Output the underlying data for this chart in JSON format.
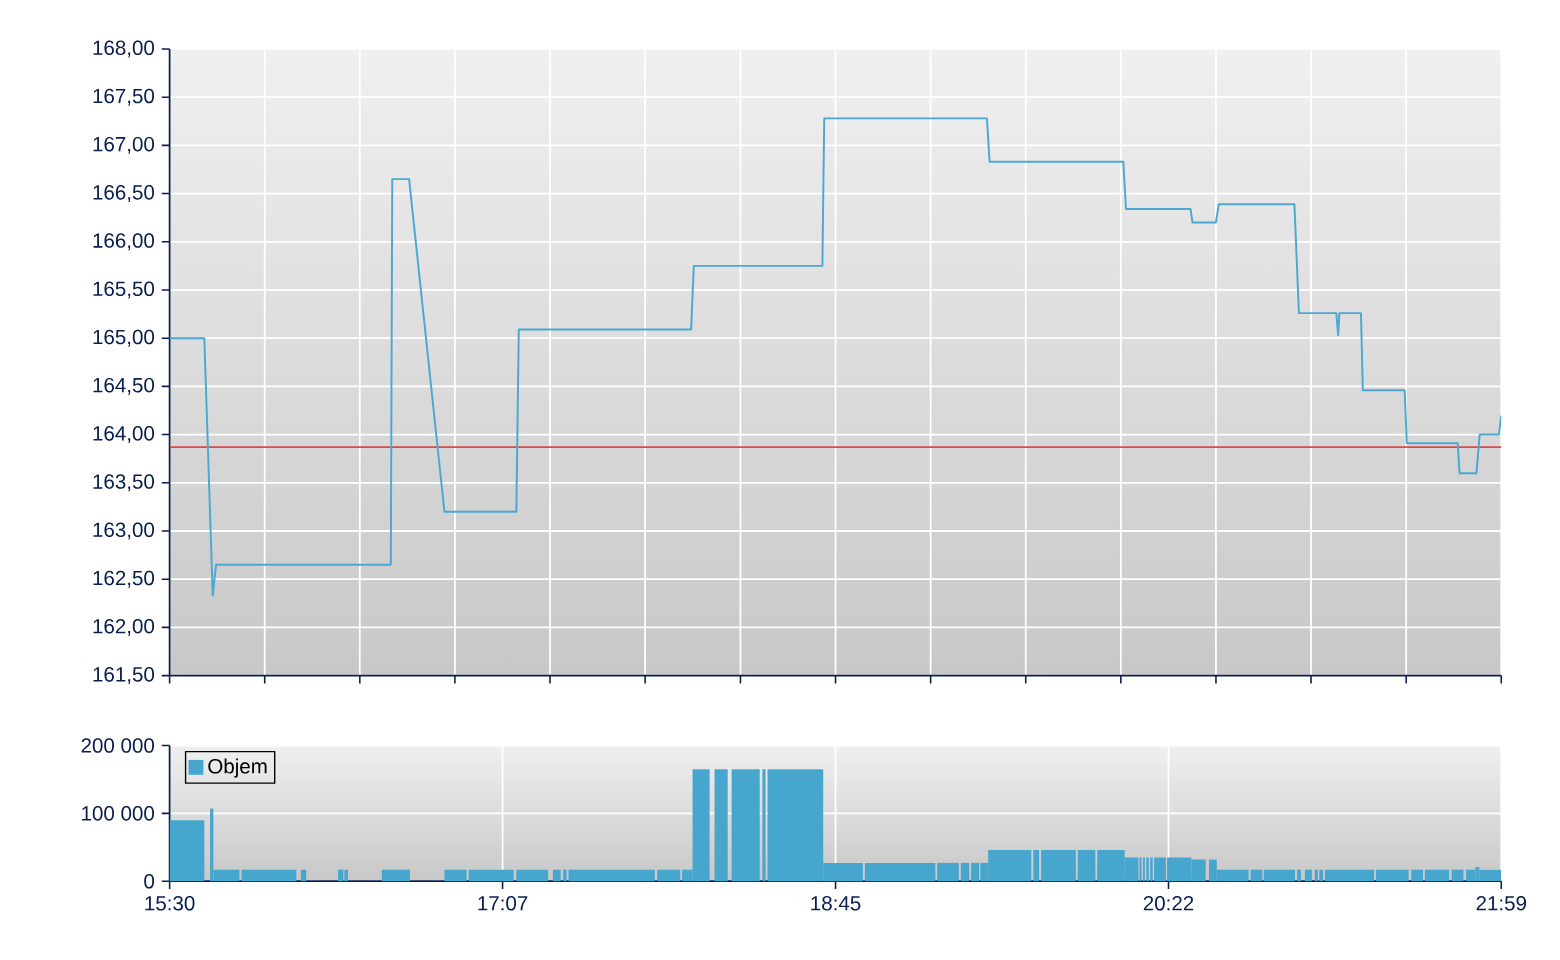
{
  "chart_data": [
    {
      "type": "line",
      "x": [
        15.5,
        15.669,
        15.71,
        15.726,
        16.577,
        16.584,
        16.666,
        16.838,
        17.188,
        17.2,
        18.039,
        18.052,
        18.678,
        18.687,
        19.479,
        19.492,
        20.143,
        20.156,
        20.47,
        20.48,
        20.594,
        20.608,
        20.976,
        20.998,
        21.18,
        21.189,
        21.195,
        21.3,
        21.309,
        21.513,
        21.523,
        21.771,
        21.78,
        21.862,
        21.878,
        21.971,
        21.983
      ],
      "values": [
        165.0,
        165.0,
        162.33,
        162.65,
        162.65,
        166.65,
        166.65,
        163.2,
        163.2,
        165.09,
        165.09,
        165.75,
        165.75,
        167.28,
        167.28,
        166.83,
        166.83,
        166.34,
        166.34,
        166.2,
        166.2,
        166.39,
        166.39,
        165.26,
        165.26,
        165.03,
        165.26,
        165.26,
        164.46,
        164.46,
        163.91,
        163.91,
        163.6,
        163.6,
        164.0,
        164.0,
        164.19
      ],
      "color": "#4ba8d3",
      "xlim": [
        15.5,
        21.983
      ],
      "xticks": [
        {
          "value": 15.5,
          "label": null
        },
        {
          "value": 15.963,
          "label": null
        },
        {
          "value": 16.426,
          "label": null
        },
        {
          "value": 16.889,
          "label": null
        },
        {
          "value": 17.352,
          "label": null
        },
        {
          "value": 17.815,
          "label": null
        },
        {
          "value": 18.279,
          "label": null
        },
        {
          "value": 18.742,
          "label": null
        },
        {
          "value": 19.205,
          "label": null
        },
        {
          "value": 19.668,
          "label": null
        },
        {
          "value": 20.131,
          "label": null
        },
        {
          "value": 20.594,
          "label": null
        },
        {
          "value": 21.057,
          "label": null
        },
        {
          "value": 21.52,
          "label": null
        },
        {
          "value": 21.983,
          "label": null
        }
      ],
      "ylim": [
        161.5,
        168
      ],
      "yticks": [
        {
          "value": 161.5,
          "label": "161,50"
        },
        {
          "value": 162,
          "label": "162,00"
        },
        {
          "value": 162.5,
          "label": "162,50"
        },
        {
          "value": 163,
          "label": "163,00"
        },
        {
          "value": 163.5,
          "label": "163,50"
        },
        {
          "value": 164,
          "label": "164,00"
        },
        {
          "value": 164.5,
          "label": "164,50"
        },
        {
          "value": 165,
          "label": "165,00"
        },
        {
          "value": 165.5,
          "label": "165,50"
        },
        {
          "value": 166,
          "label": "166,00"
        },
        {
          "value": 166.5,
          "label": "166,50"
        },
        {
          "value": 167,
          "label": "167,00"
        },
        {
          "value": 167.5,
          "label": "167,50"
        },
        {
          "value": 168,
          "label": "168,00"
        }
      ],
      "grid": true,
      "tick_labels": "y",
      "ref_lines": [
        {
          "axis": "y",
          "value": 163.87,
          "color": "#e04848"
        }
      ]
    },
    {
      "type": "histogram",
      "bins": [
        15.5,
        15.669,
        15.697,
        15.713,
        15.84,
        15.85,
        16.117,
        16.139,
        16.165,
        16.32,
        16.346,
        16.351,
        16.368,
        16.533,
        16.67,
        16.838,
        16.946,
        16.956,
        17.175,
        17.188,
        17.343,
        17.366,
        17.404,
        17.416,
        17.433,
        17.442,
        17.862,
        17.874,
        17.986,
        17.995,
        18.046,
        18.129,
        18.153,
        18.217,
        18.236,
        18.373,
        18.386,
        18.401,
        18.411,
        18.682,
        18.875,
        18.885,
        19.228,
        19.237,
        19.342,
        19.352,
        19.393,
        19.402,
        19.441,
        19.447,
        19.485,
        19.695,
        19.705,
        19.733,
        19.743,
        19.912,
        19.921,
        20.007,
        20.016,
        20.15,
        20.217,
        20.222,
        20.232,
        20.239,
        20.248,
        20.255,
        20.267,
        20.274,
        20.286,
        20.293,
        20.35,
        20.356,
        20.474,
        20.544,
        20.56,
        20.598,
        20.753,
        20.763,
        20.82,
        20.827,
        20.979,
        20.989,
        21.008,
        21.027,
        21.061,
        21.075,
        21.09,
        21.097,
        21.116,
        21.125,
        21.364,
        21.373,
        21.532,
        21.545,
        21.602,
        21.611,
        21.729,
        21.742,
        21.799,
        21.812,
        21.857,
        21.876,
        21.983
      ],
      "series": [
        {
          "name": "Objem",
          "color": "#47a6ce",
          "values": [
            90000,
            null,
            107000,
            17000,
            null,
            17000,
            null,
            17000,
            null,
            17000,
            null,
            17000,
            null,
            17000,
            null,
            17000,
            null,
            17000,
            null,
            17000,
            null,
            17000,
            null,
            17000,
            null,
            17000,
            null,
            17000,
            null,
            17000,
            165000,
            null,
            165000,
            null,
            165000,
            null,
            165000,
            null,
            165000,
            27000,
            null,
            27000,
            null,
            27000,
            null,
            27000,
            null,
            27000,
            null,
            27000,
            46000,
            null,
            46000,
            null,
            46000,
            null,
            46000,
            null,
            46000,
            35000,
            null,
            35000,
            null,
            35000,
            null,
            35000,
            null,
            35000,
            null,
            35000,
            null,
            35000,
            32000,
            null,
            32000,
            17000,
            null,
            17000,
            null,
            17000,
            null,
            17000,
            null,
            17000,
            null,
            17000,
            null,
            17000,
            null,
            17000,
            null,
            17000,
            null,
            17000,
            null,
            17000,
            null,
            17000,
            null,
            17000,
            21000,
            17000
          ]
        }
      ],
      "xlim": [
        15.5,
        21.983
      ],
      "xticks": [
        {
          "value": 15.5,
          "label": "15:30"
        },
        {
          "value": 17.121,
          "label": "17:07"
        },
        {
          "value": 18.742,
          "label": "18:45"
        },
        {
          "value": 20.363,
          "label": "20:22"
        },
        {
          "value": 21.983,
          "label": "21:59"
        }
      ],
      "ylim": [
        0,
        200000
      ],
      "yticks": [
        0,
        {
          "value": 100000,
          "label": "100 000"
        },
        {
          "value": 200000,
          "label": "200 000"
        }
      ],
      "grid": true,
      "legend": "top left"
    }
  ]
}
